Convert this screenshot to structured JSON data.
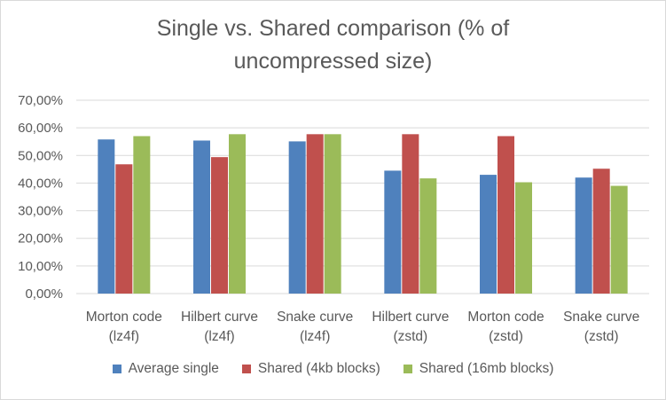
{
  "chart_data": {
    "type": "bar",
    "title": "Single vs. Shared comparison (% of\nuncompressed size)",
    "categories": [
      [
        "Morton code",
        "(lz4f)"
      ],
      [
        "Hilbert curve",
        "(lz4f)"
      ],
      [
        "Snake curve",
        "(lz4f)"
      ],
      [
        "Hilbert curve",
        "(zstd)"
      ],
      [
        "Morton code",
        "(zstd)"
      ],
      [
        "Snake curve",
        "(zstd)"
      ]
    ],
    "series": [
      {
        "name": "Average single",
        "color": "#4f81bd",
        "values": [
          55.8,
          55.4,
          55.1,
          44.5,
          43.0,
          42.0
        ]
      },
      {
        "name": "Shared (4kb blocks)",
        "color": "#c0504d",
        "values": [
          46.8,
          49.4,
          57.7,
          57.7,
          57.0,
          45.2
        ]
      },
      {
        "name": "Shared (16mb blocks)",
        "color": "#9bbb59",
        "values": [
          57.0,
          57.7,
          57.7,
          41.7,
          40.3,
          39.0
        ]
      }
    ],
    "yticks": [
      "0,00%",
      "10,00%",
      "20,00%",
      "30,00%",
      "40,00%",
      "50,00%",
      "60,00%",
      "70,00%"
    ],
    "ylim": [
      0,
      70
    ],
    "grid": true,
    "legend_position": "bottom",
    "gridline_color": "#d9d9d9"
  }
}
